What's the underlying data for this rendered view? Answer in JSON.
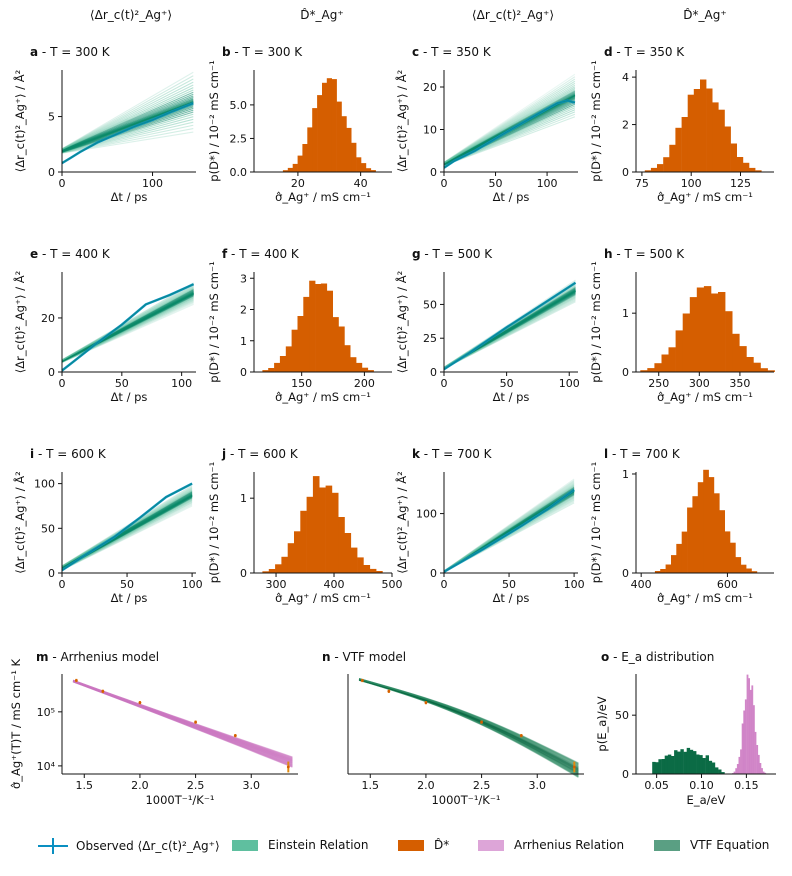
{
  "column_headers": [
    "⟨Δr_c(t)²_Ag⁺⟩",
    "D̂*_Ag⁺",
    "⟨Δr_c(t)²_Ag⁺⟩",
    "D̂*_Ag⁺"
  ],
  "colors": {
    "observed": "#0a8fc1",
    "einstein": "#5fbf9f",
    "einstein_dark": "#0c8a6a",
    "histogram": "#d55e00",
    "arrhenius": "#cc79c2",
    "vtf": "#2e8a63",
    "vtf_dark": "#0b6b45",
    "marker": "#e08a10"
  },
  "chart_data": [
    {
      "type": "line",
      "panel": "a",
      "label": "a",
      "title": " - T = 300 K",
      "xlabel": "Δt / ps",
      "ylabel": "⟨Δr_c(t)²_Ag⁺⟩ / Å²",
      "xlim": [
        0,
        148
      ],
      "ylim": [
        0,
        9.2
      ],
      "xticks": [
        0,
        100
      ],
      "yticks": [
        0,
        5
      ],
      "x_end": 145,
      "observed": [
        [
          0,
          0.8
        ],
        [
          10,
          1.3
        ],
        [
          20,
          1.8
        ],
        [
          40,
          2.7
        ],
        [
          60,
          3.4
        ],
        [
          80,
          4.1
        ],
        [
          100,
          4.7
        ],
        [
          120,
          5.4
        ],
        [
          145,
          6.2
        ]
      ],
      "fit": {
        "at0": [
          1.7,
          2.1
        ],
        "atEnd": [
          3.6,
          9.0
        ],
        "mean_end": 6.3
      }
    },
    {
      "type": "bar",
      "panel": "b",
      "label": "b",
      "title": " - T = 300 K",
      "xlabel": "σ̂_Ag⁺ / mS cm⁻¹",
      "ylabel": "p(D*) / 10⁻² mS cm⁻¹",
      "xlim": [
        6,
        50
      ],
      "ylim": [
        0,
        7.6
      ],
      "xticks": [
        20,
        40
      ],
      "yticks": [
        0,
        2.5,
        5.0
      ],
      "ytick_labels": [
        "0.0",
        "2.5",
        "5.0"
      ],
      "mu": 30,
      "sigma": 5,
      "peak": 6.8
    },
    {
      "type": "line",
      "panel": "c",
      "label": "c",
      "title": " - T = 350 K",
      "xlabel": "Δt / ps",
      "ylabel": "⟨Δr_c(t)²_Ag⁺⟩ / Å²",
      "xlim": [
        0,
        130
      ],
      "ylim": [
        0,
        24
      ],
      "xticks": [
        0,
        50,
        100
      ],
      "yticks": [
        0,
        10,
        20
      ],
      "x_end": 127,
      "observed": [
        [
          0,
          1.0
        ],
        [
          10,
          2.6
        ],
        [
          30,
          5
        ],
        [
          60,
          9.3
        ],
        [
          90,
          13.5
        ],
        [
          110,
          16.2
        ],
        [
          120,
          16.8
        ],
        [
          127,
          16.3
        ]
      ],
      "fit": {
        "at0": [
          1.5,
          2.3
        ],
        "atEnd": [
          13.0,
          23.0
        ],
        "mean_end": 17.5
      }
    },
    {
      "type": "bar",
      "panel": "d",
      "label": "d",
      "title": " - T = 350 K",
      "xlabel": "σ̂_Ag⁺ / mS cm⁻¹",
      "ylabel": "p(D*) / 10⁻² mS cm⁻¹",
      "xlim": [
        72,
        142
      ],
      "ylim": [
        0,
        4.3
      ],
      "xticks": [
        75,
        100,
        125
      ],
      "yticks": [
        0,
        2,
        4
      ],
      "ytick_labels": [
        "0",
        "2",
        "4"
      ],
      "mu": 106,
      "sigma": 10,
      "peak": 3.9
    },
    {
      "type": "line",
      "panel": "e",
      "label": "e",
      "title": " - T = 400 K",
      "xlabel": "Δt / ps",
      "ylabel": "⟨Δr_c(t)²_Ag⁺⟩ / Å²",
      "xlim": [
        0,
        112
      ],
      "ylim": [
        0,
        37
      ],
      "xticks": [
        0,
        50,
        100
      ],
      "yticks": [
        0,
        20
      ],
      "x_end": 110,
      "observed": [
        [
          0,
          0.5
        ],
        [
          10,
          4
        ],
        [
          30,
          11
        ],
        [
          50,
          17.5
        ],
        [
          70,
          25
        ],
        [
          90,
          28.5
        ],
        [
          110,
          32.5
        ]
      ],
      "fit": {
        "at0": [
          3.5,
          4.5
        ],
        "atEnd": [
          25.0,
          33.0
        ],
        "mean_end": 29.5
      }
    },
    {
      "type": "bar",
      "panel": "f",
      "label": "f",
      "title": " - T = 400 K",
      "xlabel": "σ̂_Ag⁺ / mS cm⁻¹",
      "ylabel": "p(D*) / 10⁻² mS cm⁻¹",
      "xlim": [
        112,
        222
      ],
      "ylim": [
        0,
        3.2
      ],
      "xticks": [
        150,
        200
      ],
      "yticks": [
        0,
        1,
        2,
        3
      ],
      "ytick_labels": [
        "0",
        "1",
        "2",
        "3"
      ],
      "mu": 163,
      "sigma": 15,
      "peak": 2.9
    },
    {
      "type": "line",
      "panel": "g",
      "label": "g",
      "title": " - T = 500 K",
      "xlabel": "Δt / ps",
      "ylabel": "⟨Δr_c(t)²_Ag⁺⟩ / Å²",
      "xlim": [
        0,
        107
      ],
      "ylim": [
        0,
        74
      ],
      "xticks": [
        0,
        50,
        100
      ],
      "yticks": [
        0,
        25,
        50
      ],
      "x_end": 105,
      "observed": [
        [
          0,
          2
        ],
        [
          20,
          14
        ],
        [
          50,
          33
        ],
        [
          70,
          45
        ],
        [
          90,
          57
        ],
        [
          105,
          66
        ]
      ],
      "fit": {
        "at0": [
          2.5,
          3.5
        ],
        "atEnd": [
          52.0,
          68.0
        ],
        "mean_end": 60.0
      }
    },
    {
      "type": "bar",
      "panel": "h",
      "label": "h",
      "title": " - T = 500 K",
      "xlabel": "σ̂_Ag⁺ / mS cm⁻¹",
      "ylabel": "p(D*) / 10⁻² mS cm⁻¹",
      "xlim": [
        222,
        392
      ],
      "ylim": [
        0,
        1.7
      ],
      "xticks": [
        250,
        300,
        350
      ],
      "yticks": [
        0,
        1
      ],
      "ytick_labels": [
        "0",
        "1"
      ],
      "mu": 310,
      "sigma": 28,
      "peak": 1.55
    },
    {
      "type": "line",
      "panel": "i",
      "label": "i",
      "title": " - T = 600 K",
      "xlabel": "Δt / ps",
      "ylabel": "⟨Δr_c(t)²_Ag⁺⟩ / Å²",
      "xlim": [
        0,
        103
      ],
      "ylim": [
        0,
        113
      ],
      "xticks": [
        0,
        50,
        100
      ],
      "yticks": [
        0,
        50,
        100
      ],
      "x_end": 100,
      "observed": [
        [
          0,
          3
        ],
        [
          20,
          22
        ],
        [
          40,
          40
        ],
        [
          60,
          62
        ],
        [
          80,
          85
        ],
        [
          100,
          100
        ]
      ],
      "fit": {
        "at0": [
          3.0,
          8.0
        ],
        "atEnd": [
          75.0,
          98.0
        ],
        "mean_end": 88.0
      }
    },
    {
      "type": "bar",
      "panel": "j",
      "label": "j",
      "title": " - T = 600 K",
      "xlabel": "σ̂_Ag⁺ / mS cm⁻¹",
      "ylabel": "p(D*) / 10⁻² mS cm⁻¹",
      "xlim": [
        262,
        500
      ],
      "ylim": [
        0,
        1.35
      ],
      "xticks": [
        300,
        400,
        500
      ],
      "yticks": [
        0,
        1
      ],
      "ytick_labels": [
        "0",
        "1"
      ],
      "mu": 380,
      "sigma": 35,
      "peak": 1.25
    },
    {
      "type": "line",
      "panel": "k",
      "label": "k",
      "title": " - T = 700 K",
      "xlabel": "Δt / ps",
      "ylabel": "⟨Δr_c(t)²_Ag⁺⟩ / Å²",
      "xlim": [
        0,
        103
      ],
      "ylim": [
        0,
        170
      ],
      "xticks": [
        0,
        50,
        100
      ],
      "yticks": [
        0,
        100
      ],
      "x_end": 100,
      "observed": [
        [
          0,
          2
        ],
        [
          30,
          40
        ],
        [
          60,
          80
        ],
        [
          80,
          108
        ],
        [
          100,
          140
        ]
      ],
      "fit": {
        "at0": [
          1.5,
          3.5
        ],
        "atEnd": [
          118.0,
          158.0
        ],
        "mean_end": 138.0
      }
    },
    {
      "type": "bar",
      "panel": "l",
      "label": "l",
      "title": " - T = 700 K",
      "xlabel": "σ̂_Ag⁺ / mS cm⁻¹",
      "ylabel": "p(D*) / 10⁻² mS cm⁻¹",
      "xlim": [
        388,
        708
      ],
      "ylim": [
        0,
        1.02
      ],
      "xticks": [
        400,
        600
      ],
      "yticks": [
        0,
        1
      ],
      "ytick_labels": [
        "0",
        "1"
      ],
      "mu": 550,
      "sigma": 40,
      "peak": 0.96
    },
    {
      "type": "line",
      "panel": "m",
      "label": "m",
      "title": " - Arrhenius model",
      "xlabel": "1000T⁻¹/K⁻¹",
      "ylabel": "σ̂_Ag⁺(T)T / mS cm⁻¹ K",
      "xlim": [
        1.3,
        3.42
      ],
      "ylog": [
        3.85,
        5.7
      ],
      "xticks": [
        1.5,
        2.0,
        2.5,
        3.0
      ],
      "xtick_labels": [
        "1.5",
        "2.0",
        "2.5",
        "3.0"
      ],
      "yticks": [
        4,
        5
      ],
      "ytick_labels": [
        "10⁴",
        "10⁵"
      ],
      "points_x": [
        1.429,
        1.667,
        2.0,
        2.5,
        2.857,
        3.333
      ],
      "points_log10y": [
        5.58,
        5.38,
        5.17,
        4.81,
        4.56,
        3.98
      ],
      "points_err": [
        0.03,
        0.03,
        0.03,
        0.03,
        0.03,
        0.1
      ],
      "fit_start": [
        1.4,
        5.57
      ],
      "fit_end": [
        3.37,
        4.07
      ],
      "band_half_width_end": 0.08
    },
    {
      "type": "line",
      "panel": "n",
      "label": "n",
      "title": " - VTF model",
      "xlabel": "1000T⁻¹/K⁻¹",
      "ylabel": "",
      "xlim": [
        1.3,
        3.42
      ],
      "ylog": [
        3.85,
        5.7
      ],
      "xticks": [
        1.5,
        2.0,
        2.5,
        3.0
      ],
      "xtick_labels": [
        "1.5",
        "2.0",
        "2.5",
        "3.0"
      ],
      "yticks": [],
      "ytick_labels": [],
      "points_x": [
        1.429,
        1.667,
        2.0,
        2.5,
        2.857,
        3.333
      ],
      "points_log10y": [
        5.58,
        5.38,
        5.17,
        4.81,
        4.56,
        3.98
      ],
      "points_err": [
        0.03,
        0.03,
        0.03,
        0.03,
        0.03,
        0.1
      ],
      "fit_start": [
        1.4,
        5.6
      ],
      "fit_end": [
        3.37,
        3.98
      ],
      "band_half_width_end": 0.12
    },
    {
      "type": "bar",
      "panel": "o",
      "label": "o",
      "title": " - E_a distribution",
      "xlabel": "E_a/eV",
      "ylabel": "p(E_a)/eV",
      "xlim": [
        0.027,
        0.183
      ],
      "ylim": [
        0,
        85
      ],
      "xticks": [
        0.05,
        0.1,
        0.15
      ],
      "xtick_labels": [
        "0.05",
        "0.10",
        "0.15"
      ],
      "yticks": [
        0,
        50
      ],
      "ytick_labels": [
        "0",
        "50"
      ],
      "vtf_range": [
        0.045,
        0.125
      ],
      "vtf_height": 18,
      "arrhenius_mu": 0.152,
      "arrhenius_sigma": 0.006,
      "arrhenius_peak": 76
    }
  ],
  "legend": [
    {
      "label": "Observed ⟨Δr_c(t)²_Ag⁺⟩",
      "kind": "line",
      "color": "#0a8fc1"
    },
    {
      "label": "Einstein Relation",
      "kind": "patch",
      "color": "#5fbf9f"
    },
    {
      "label": "D̂*",
      "kind": "patch",
      "color": "#d55e00"
    },
    {
      "label": "Arrhenius Relation",
      "kind": "patch",
      "color": "#dda5d8"
    },
    {
      "label": "VTF Equation",
      "kind": "patch",
      "color": "#5a9f83"
    }
  ]
}
